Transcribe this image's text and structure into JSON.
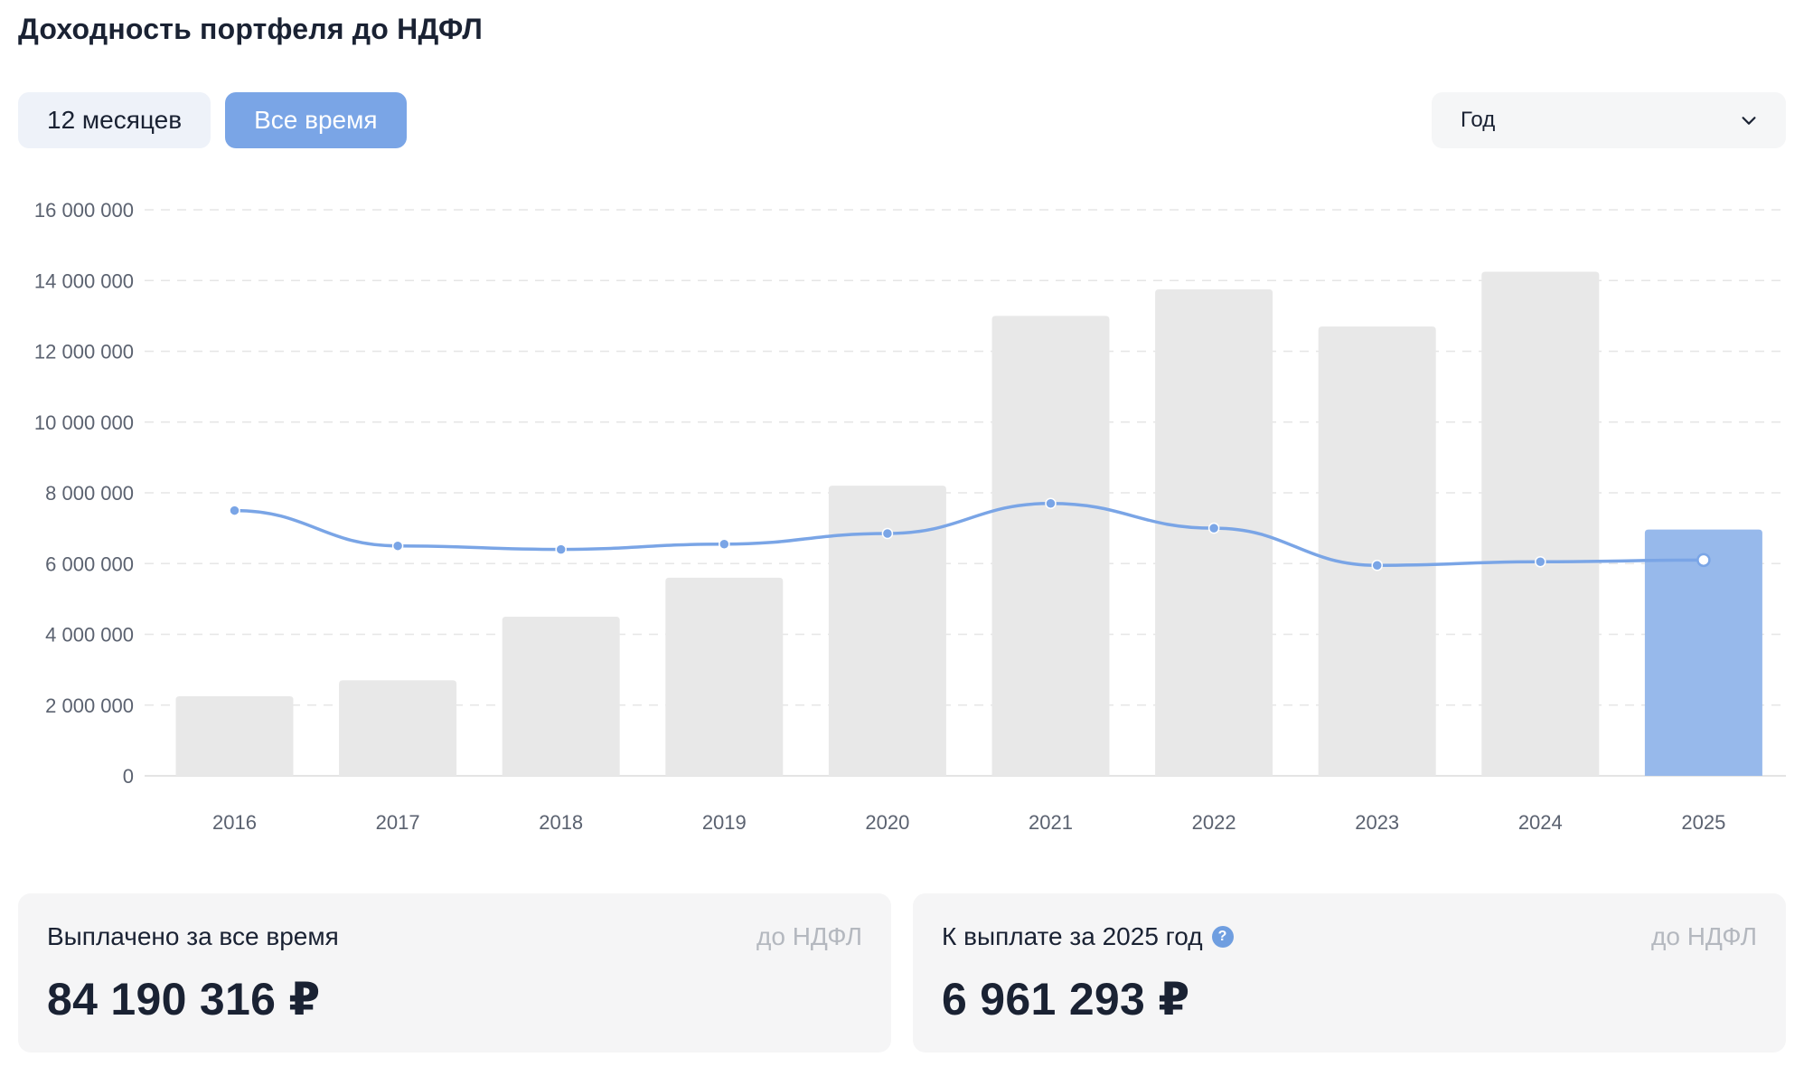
{
  "header": {
    "title": "Доходность портфеля до НДФЛ"
  },
  "tabs": [
    {
      "label": "12 месяцев",
      "active": false
    },
    {
      "label": "Все время",
      "active": true
    }
  ],
  "period_select": {
    "value": "Год",
    "icon": "chevron-down-icon"
  },
  "colors": {
    "bar": "#e8e8e8",
    "bar_active": "#97b9eb",
    "line": "#7aa5e6",
    "grid": "#e6e6e6",
    "accent": "#7aa5e6"
  },
  "chart_data": {
    "type": "bar",
    "categories": [
      "2016",
      "2017",
      "2018",
      "2019",
      "2020",
      "2021",
      "2022",
      "2023",
      "2024",
      "2025"
    ],
    "series": [
      {
        "type": "bar",
        "values": [
          2250000,
          2700000,
          4500000,
          5600000,
          8200000,
          13000000,
          13750000,
          12700000,
          14250000,
          6961293
        ]
      },
      {
        "type": "line",
        "values": [
          7500000,
          6500000,
          6400000,
          6550000,
          6850000,
          7700000,
          7000000,
          5950000,
          6050000,
          6100000
        ]
      }
    ],
    "highlighted_category": "2025",
    "yticks": [
      "16 000 000",
      "14 000 000",
      "12 000 000",
      "10 000 000",
      "8 000 000",
      "6 000 000",
      "4 000 000",
      "2 000 000",
      "0"
    ],
    "ylim": [
      0,
      16000000
    ],
    "grid": true
  },
  "cards": [
    {
      "label": "Выплачено за все время",
      "note": "до НДФЛ",
      "value": "84 190 316 ₽"
    },
    {
      "label": "К выплате за 2025 год",
      "note": "до НДФЛ",
      "value": "6 961 293 ₽",
      "help_icon": "?"
    }
  ]
}
